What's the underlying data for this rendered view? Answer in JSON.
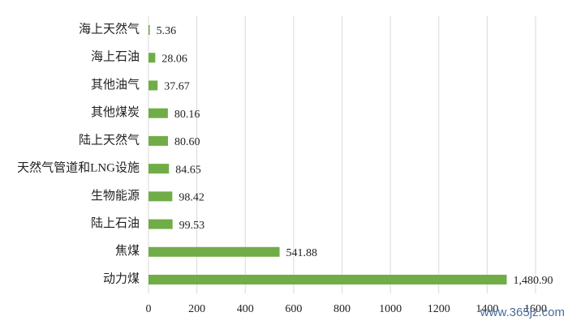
{
  "chart_data": {
    "type": "hbar",
    "categories": [
      "海上天然气",
      "海上石油",
      "其他油气",
      "其他煤炭",
      "陆上天然气",
      "天然气管道和LNG设施",
      "生物能源",
      "陆上石油",
      "焦煤",
      "动力煤"
    ],
    "values": [
      5.36,
      28.06,
      37.67,
      80.16,
      80.6,
      84.65,
      98.42,
      99.53,
      541.88,
      1480.9
    ],
    "value_labels": [
      "5.36",
      "28.06",
      "37.67",
      "80.16",
      "80.60",
      "84.65",
      "98.42",
      "99.53",
      "541.88",
      "1,480.90"
    ],
    "color": "#70ad47",
    "xlim": [
      0,
      1600
    ],
    "xticks": [
      0,
      200,
      400,
      600,
      800,
      1000,
      1200,
      1400,
      1600
    ],
    "grid": true,
    "watermark": "www.365jz.com"
  }
}
